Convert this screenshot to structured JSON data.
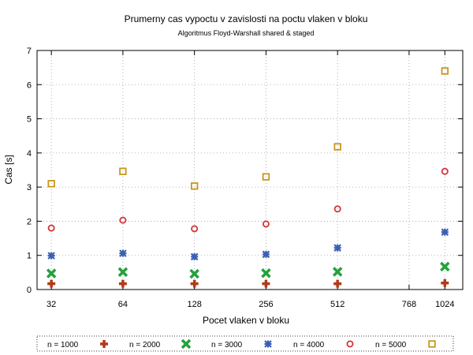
{
  "chart_data": {
    "type": "scatter",
    "title": "Prumerny cas vypoctu v zavislosti na poctu vlaken v bloku",
    "subtitle": "Algoritmus Floyd-Warshall shared & staged",
    "xlabel": "Pocet vlaken v bloku",
    "ylabel": "Cas [s]",
    "x_ticks": [
      32,
      64,
      128,
      256,
      512,
      768,
      1024
    ],
    "x_tick_labels": [
      "32",
      "64",
      "128",
      "256",
      "512",
      "768",
      "1024"
    ],
    "y_ticks": [
      0,
      1,
      2,
      3,
      4,
      5,
      6,
      7
    ],
    "y_tick_labels": [
      "0",
      "1",
      "2",
      "3",
      "4",
      "5",
      "6",
      "7"
    ],
    "ylim": [
      0,
      7
    ],
    "x_categories": [
      "32",
      "64",
      "128",
      "256",
      "512",
      "1024"
    ],
    "x_category_positions": [
      1,
      2,
      3,
      4,
      5,
      6.5
    ],
    "xlim_positions": [
      0.8,
      6.75
    ],
    "x_tick_positions": [
      1,
      2,
      3,
      4,
      5,
      6,
      6.5
    ],
    "grid": true,
    "legend_position": "bottom",
    "series": [
      {
        "name": "n = 1000",
        "marker": "plus",
        "color": "#b03a1a",
        "values": [
          0.17,
          0.17,
          0.17,
          0.17,
          0.17,
          0.19
        ]
      },
      {
        "name": "n = 2000",
        "marker": "cross",
        "color": "#23a23b",
        "values": [
          0.47,
          0.51,
          0.46,
          0.48,
          0.52,
          0.67
        ]
      },
      {
        "name": "n = 3000",
        "marker": "star",
        "color": "#3a5fb5",
        "values": [
          0.99,
          1.06,
          0.96,
          1.03,
          1.22,
          1.68
        ]
      },
      {
        "name": "n = 4000",
        "marker": "circle",
        "color": "#d0343a",
        "values": [
          1.8,
          2.03,
          1.78,
          1.92,
          2.36,
          3.46
        ]
      },
      {
        "name": "n = 5000",
        "marker": "square",
        "color": "#c8961e",
        "values": [
          3.1,
          3.46,
          3.03,
          3.3,
          4.18,
          6.4
        ]
      }
    ]
  }
}
